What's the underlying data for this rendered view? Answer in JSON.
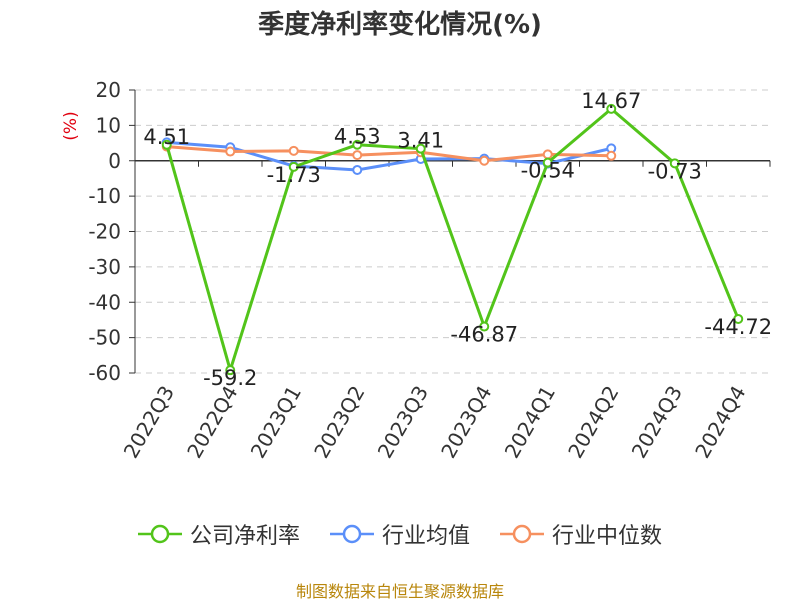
{
  "chart_data": {
    "type": "line",
    "title": "季度净利率变化情况(%)",
    "ylabel": "(%)",
    "xlabel": "",
    "categories": [
      "2022Q3",
      "2022Q4",
      "2023Q1",
      "2023Q2",
      "2023Q3",
      "2023Q4",
      "2024Q1",
      "2024Q2",
      "2024Q3",
      "2024Q4"
    ],
    "ylim": [
      -60,
      20
    ],
    "yticks": [
      20,
      10,
      0,
      -10,
      -20,
      -30,
      -40,
      -50,
      -60
    ],
    "grid": true,
    "legend_position": "bottom",
    "series": [
      {
        "name": "公司净利率",
        "color": "#52c41a",
        "values": [
          4.51,
          -59.2,
          -1.73,
          4.53,
          3.41,
          -46.87,
          -0.54,
          14.67,
          -0.73,
          -44.72
        ],
        "labels": [
          "4.51",
          "-59.2",
          "-1.73",
          "4.53",
          "3.41",
          "-46.87",
          "-0.54",
          "14.67",
          "-0.73",
          "-44.72"
        ]
      },
      {
        "name": "行业均值",
        "color": "#5b8ff9",
        "values": [
          5.2,
          3.8,
          -1.5,
          -2.6,
          0.5,
          0.6,
          -0.8,
          3.5,
          null,
          null
        ]
      },
      {
        "name": "行业中位数",
        "color": "#f6905f",
        "values": [
          4.0,
          2.6,
          2.8,
          1.6,
          2.4,
          0.0,
          1.8,
          1.4,
          null,
          null
        ]
      }
    ]
  },
  "footer": {
    "source": "制图数据来自恒生聚源数据库"
  }
}
